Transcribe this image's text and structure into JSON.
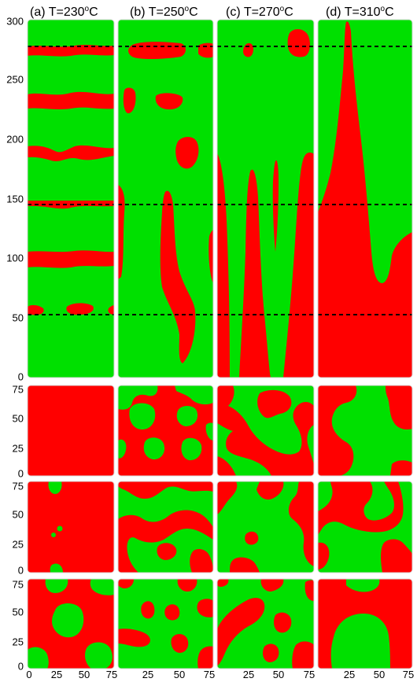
{
  "colors": {
    "phase_a": "#00e000",
    "phase_b": "#ff0000",
    "guide": "#000000"
  },
  "columns": [
    {
      "label": "(a) T=230°C",
      "prefix": "(a) T=230",
      "unit": "C",
      "sup": "o"
    },
    {
      "label": "(b) T=250°C",
      "prefix": "(b) T=250",
      "unit": "C",
      "sup": "o"
    },
    {
      "label": "(c) T=270°C",
      "prefix": "(c) T=270",
      "unit": "C",
      "sup": "o"
    },
    {
      "label": "(d) T=310°C",
      "prefix": "(d) T=310",
      "unit": "C",
      "sup": "o"
    }
  ],
  "y_axis_long": {
    "range": [
      0,
      300
    ],
    "ticks": [
      "0",
      "50",
      "100",
      "150",
      "200",
      "250",
      "300"
    ]
  },
  "y_axis_small": {
    "range": [
      0,
      75
    ],
    "ticks": [
      "0",
      "25",
      "50",
      "75"
    ]
  },
  "x_axis": {
    "range": [
      0,
      75
    ],
    "ticks": [
      "0",
      "25",
      "50",
      "75"
    ]
  },
  "slice_lines": [
    278,
    145,
    53
  ]
}
